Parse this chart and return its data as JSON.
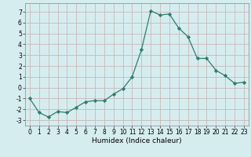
{
  "x": [
    0,
    1,
    2,
    3,
    4,
    5,
    6,
    7,
    8,
    9,
    10,
    11,
    12,
    13,
    14,
    15,
    16,
    17,
    18,
    19,
    20,
    21,
    22,
    23
  ],
  "y": [
    -1,
    -2.3,
    -2.7,
    -2.2,
    -2.3,
    -1.8,
    -1.3,
    -1.2,
    -1.2,
    -0.6,
    -0.1,
    1.0,
    3.5,
    7.1,
    6.7,
    6.8,
    5.5,
    4.7,
    2.7,
    2.7,
    1.6,
    1.1,
    0.4,
    0.5
  ],
  "line_color": "#2e7d6e",
  "marker": "D",
  "marker_size": 2.2,
  "bg_color": "#d6edf0",
  "grid_color": "#c8b8b8",
  "xlabel": "Humidex (Indice chaleur)",
  "ylim": [
    -3.5,
    7.8
  ],
  "xlim": [
    -0.5,
    23.5
  ],
  "yticks": [
    -3,
    -2,
    -1,
    0,
    1,
    2,
    3,
    4,
    5,
    6,
    7
  ],
  "xticks": [
    0,
    1,
    2,
    3,
    4,
    5,
    6,
    7,
    8,
    9,
    10,
    11,
    12,
    13,
    14,
    15,
    16,
    17,
    18,
    19,
    20,
    21,
    22,
    23
  ],
  "tick_fontsize": 5.5,
  "label_fontsize": 6.5
}
